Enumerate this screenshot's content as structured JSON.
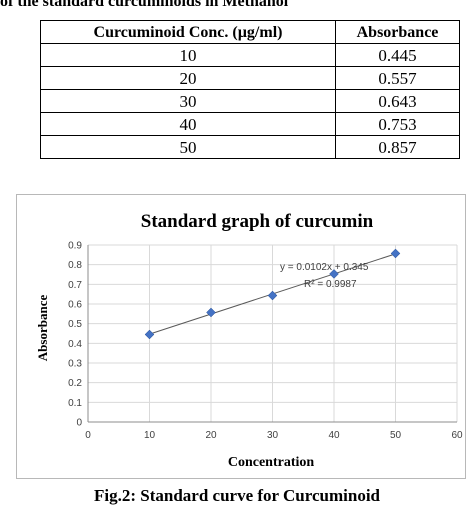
{
  "table": {
    "caption": "of the standard curcuminoids in Methanol",
    "headers": [
      "Curcuminoid Conc. (µg/ml)",
      "Absorbance"
    ],
    "rows": [
      [
        "10",
        "0.445"
      ],
      [
        "20",
        "0.557"
      ],
      [
        "30",
        "0.643"
      ],
      [
        "40",
        "0.753"
      ],
      [
        "50",
        "0.857"
      ]
    ]
  },
  "chart_data": {
    "type": "scatter",
    "title": "Standard graph of curcumin",
    "xlabel": "Concentration",
    "ylabel": "Absorbance",
    "xlim": [
      0,
      60
    ],
    "ylim": [
      0,
      0.9
    ],
    "xticks": [
      0,
      10,
      20,
      30,
      40,
      50,
      60
    ],
    "yticks": [
      0,
      0.1,
      0.2,
      0.3,
      0.4,
      0.5,
      0.6,
      0.7,
      0.8,
      0.9
    ],
    "grid": true,
    "x": [
      10,
      20,
      30,
      40,
      50
    ],
    "y": [
      0.445,
      0.557,
      0.643,
      0.753,
      0.857
    ],
    "trendline": {
      "slope": 0.0102,
      "intercept": 0.345
    },
    "annotations": [
      "y = 0.0102x + 0.345",
      "R² = 0.9987"
    ],
    "marker_color": "#4472C4",
    "grid_color": "#d9d9d9"
  },
  "figure": {
    "caption": "Fig.2: Standard curve for Curcuminoid"
  }
}
